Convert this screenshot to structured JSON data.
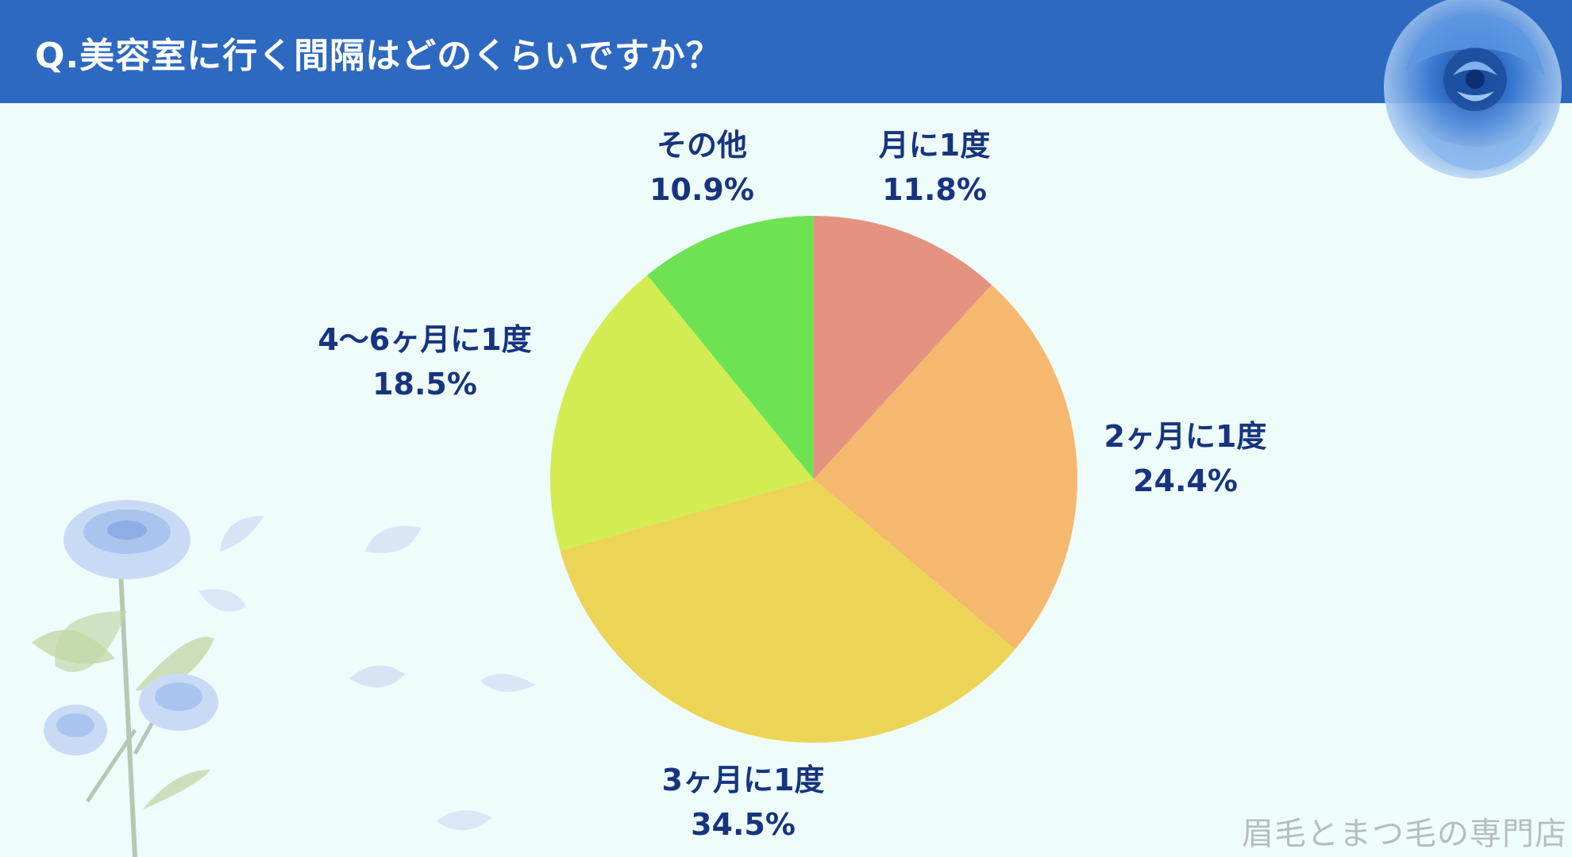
{
  "header": {
    "title": "Q.美容室に行く間隔はどのくらいですか？"
  },
  "watermark": "眉毛とまつ毛の専門店",
  "colors": {
    "header_bg": "#2d69c0",
    "background": "#eefcfc",
    "label_text": "#17347f"
  },
  "chart_data": {
    "type": "pie",
    "start": "12 o'clock",
    "direction": "clockwise",
    "slices": [
      {
        "label": "月に1度",
        "value": 11.8,
        "value_text": "11.8%",
        "color": "#e49381"
      },
      {
        "label": "2ヶ月に1度",
        "value": 24.4,
        "value_text": "24.4%",
        "color": "#f6b86f"
      },
      {
        "label": "3ヶ月に1度",
        "value": 34.5,
        "value_text": "34.5%",
        "color": "#ecd456"
      },
      {
        "label": "4～6ヶ月に1度",
        "value": 18.5,
        "value_text": "18.5%",
        "color": "#d3ec52"
      },
      {
        "label": "その他",
        "value": 10.9,
        "value_text": "10.9%",
        "color": "#6de354"
      }
    ]
  }
}
